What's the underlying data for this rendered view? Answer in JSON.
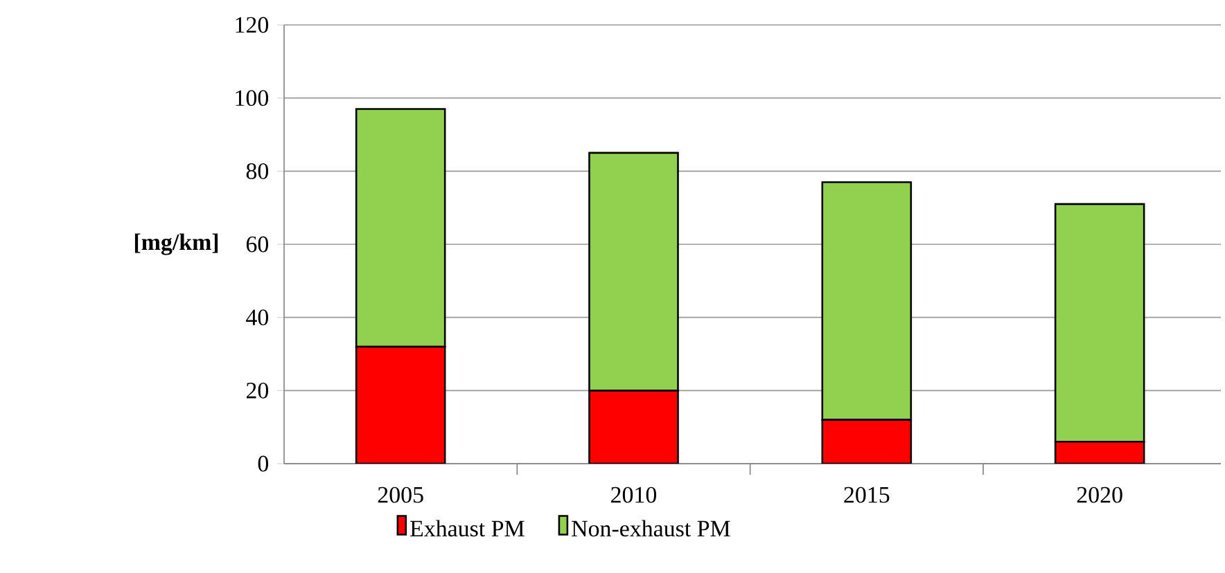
{
  "chart_data": {
    "type": "bar",
    "stacked": true,
    "ylabel": "[mg/km]",
    "categories": [
      "2005",
      "2010",
      "2015",
      "2020"
    ],
    "series": [
      {
        "name": "Exhaust PM",
        "color": "#ff0000",
        "values": [
          32,
          20,
          12,
          6
        ]
      },
      {
        "name": "Non-exhaust PM",
        "color": "#92d050",
        "values": [
          65,
          65,
          65,
          65
        ]
      }
    ],
    "ylim": [
      0,
      120
    ],
    "yticks": [
      0,
      20,
      40,
      60,
      80,
      100,
      120
    ],
    "grid": "y",
    "legend": "bottom"
  }
}
